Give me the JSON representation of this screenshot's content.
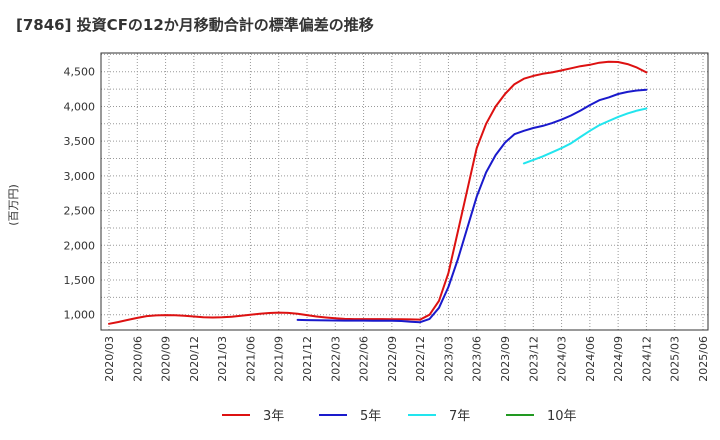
{
  "chart_data": {
    "type": "line",
    "title": "[7846]  投資CFの12か月移動合計の標準偏差の推移",
    "ylabel": "(百万円)",
    "xlabel": "",
    "ylim": [
      780,
      4770
    ],
    "yticks": [
      1000,
      1500,
      2000,
      2500,
      3000,
      3500,
      4000,
      4500
    ],
    "ytick_labels": [
      "1,000",
      "1,500",
      "2,000",
      "2,500",
      "3,000",
      "3,500",
      "4,000",
      "4,500"
    ],
    "xtick_labels": [
      "2020/03",
      "2020/06",
      "2020/09",
      "2020/12",
      "2021/03",
      "2021/06",
      "2021/09",
      "2021/12",
      "2022/03",
      "2022/06",
      "2022/09",
      "2022/12",
      "2023/03",
      "2023/06",
      "2023/09",
      "2023/12",
      "2024/03",
      "2024/06",
      "2024/09",
      "2024/12",
      "2025/03",
      "2025/06"
    ],
    "grid": true,
    "legend_position": "bottom",
    "series": [
      {
        "name": "3年",
        "color": "#dd1111",
        "x": [
          "2020/03",
          "2020/04",
          "2020/05",
          "2020/06",
          "2020/07",
          "2020/08",
          "2020/09",
          "2020/10",
          "2020/11",
          "2020/12",
          "2021/01",
          "2021/02",
          "2021/03",
          "2021/04",
          "2021/05",
          "2021/06",
          "2021/07",
          "2021/08",
          "2021/09",
          "2021/10",
          "2021/11",
          "2021/12",
          "2022/01",
          "2022/02",
          "2022/03",
          "2022/04",
          "2022/05",
          "2022/06",
          "2022/07",
          "2022/08",
          "2022/09",
          "2022/10",
          "2022/11",
          "2022/12",
          "2023/01",
          "2023/02",
          "2023/03",
          "2023/04",
          "2023/05",
          "2023/06",
          "2023/07",
          "2023/08",
          "2023/09",
          "2023/10",
          "2023/11",
          "2023/12",
          "2024/01",
          "2024/02",
          "2024/03",
          "2024/04",
          "2024/05",
          "2024/06",
          "2024/07",
          "2024/08",
          "2024/09",
          "2024/10",
          "2024/11",
          "2024/12"
        ],
        "values": [
          870,
          895,
          925,
          955,
          980,
          990,
          995,
          993,
          985,
          975,
          965,
          960,
          963,
          970,
          985,
          1000,
          1015,
          1025,
          1030,
          1027,
          1015,
          995,
          975,
          960,
          948,
          940,
          937,
          937,
          937,
          937,
          936,
          935,
          933,
          930,
          1000,
          1200,
          1600,
          2200,
          2800,
          3400,
          3750,
          4000,
          4180,
          4320,
          4400,
          4440,
          4470,
          4490,
          4520,
          4550,
          4580,
          4600,
          4630,
          4645,
          4640,
          4610,
          4560,
          4490
        ]
      },
      {
        "name": "5年",
        "color": "#1a1acc",
        "x": [
          "2021/11",
          "2021/12",
          "2022/01",
          "2022/02",
          "2022/03",
          "2022/04",
          "2022/05",
          "2022/06",
          "2022/07",
          "2022/08",
          "2022/09",
          "2022/10",
          "2022/11",
          "2022/12",
          "2023/01",
          "2023/02",
          "2023/03",
          "2023/04",
          "2023/05",
          "2023/06",
          "2023/07",
          "2023/08",
          "2023/09",
          "2023/10",
          "2023/11",
          "2023/12",
          "2024/01",
          "2024/02",
          "2024/03",
          "2024/04",
          "2024/05",
          "2024/06",
          "2024/07",
          "2024/08",
          "2024/09",
          "2024/10",
          "2024/11",
          "2024/12"
        ],
        "values": [
          925,
          922,
          920,
          918,
          917,
          916,
          915,
          915,
          914,
          913,
          912,
          910,
          900,
          893,
          940,
          1100,
          1400,
          1800,
          2250,
          2700,
          3050,
          3300,
          3480,
          3600,
          3650,
          3690,
          3720,
          3760,
          3810,
          3870,
          3940,
          4020,
          4090,
          4130,
          4180,
          4210,
          4230,
          4240
        ]
      },
      {
        "name": "7年",
        "color": "#22e5ee",
        "x": [
          "2023/11",
          "2023/12",
          "2024/01",
          "2024/02",
          "2024/03",
          "2024/04",
          "2024/05",
          "2024/06",
          "2024/07",
          "2024/08",
          "2024/09",
          "2024/10",
          "2024/11",
          "2024/12"
        ],
        "values": [
          3180,
          3230,
          3280,
          3340,
          3400,
          3470,
          3560,
          3650,
          3730,
          3790,
          3850,
          3900,
          3940,
          3970
        ]
      },
      {
        "name": "10年",
        "color": "#229922",
        "x": [],
        "values": []
      }
    ]
  }
}
